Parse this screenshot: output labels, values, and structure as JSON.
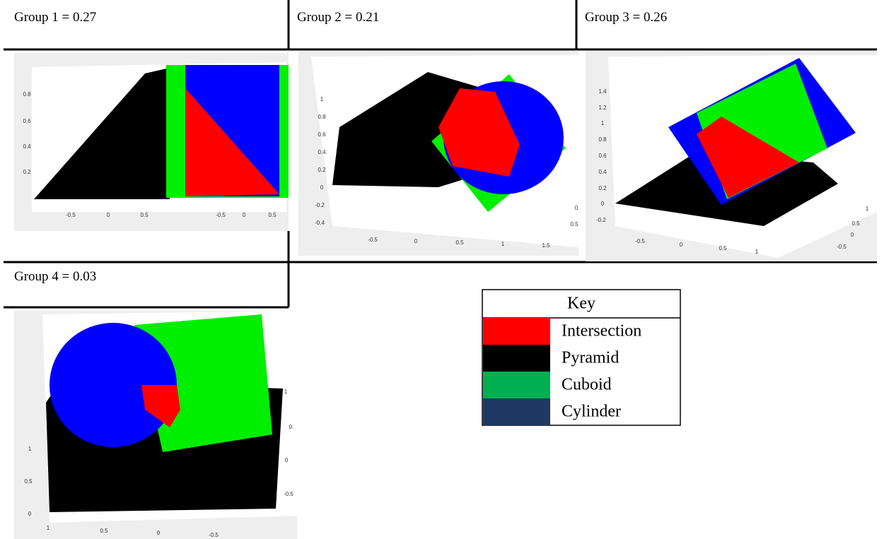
{
  "panels": [
    {
      "title": "Group 1 = 0.27",
      "tick_labels": [
        "0.8",
        "0.6",
        "0.4",
        "0.2",
        "-0.5",
        "0",
        "0.5",
        "-0.5",
        "0",
        "0.5"
      ]
    },
    {
      "title": "Group 2 = 0.21",
      "tick_labels": [
        "1",
        "0.8",
        "0.6",
        "0.4",
        "0.2",
        "0",
        "-0.2",
        "-0.4",
        "-0.5",
        "0",
        "0.5",
        "1",
        "1.5",
        "0",
        "0.5"
      ]
    },
    {
      "title": "Group 3 = 0.26",
      "tick_labels": [
        "1.4",
        "1.2",
        "1",
        "0.8",
        "0.6",
        "0.4",
        "0.2",
        "0",
        "-0.2",
        "-0.5",
        "0",
        "0.5",
        "1",
        "1",
        "0.5",
        "0",
        "-0.5"
      ]
    },
    {
      "title": "Group 4 = 0.03",
      "tick_labels": [
        "1",
        "0.5",
        "0",
        "1",
        "0.5",
        "0",
        "-0.5",
        "1",
        "0.",
        "0",
        "-0.5"
      ]
    }
  ],
  "key": {
    "title": "Key",
    "rows": [
      {
        "label": "Intersection",
        "color": "#ff0000"
      },
      {
        "label": "Pyramid",
        "color": "#000000"
      },
      {
        "label": "Cuboid",
        "color": "#00b050"
      },
      {
        "label": "Cylinder",
        "color": "#1f3864"
      }
    ]
  }
}
